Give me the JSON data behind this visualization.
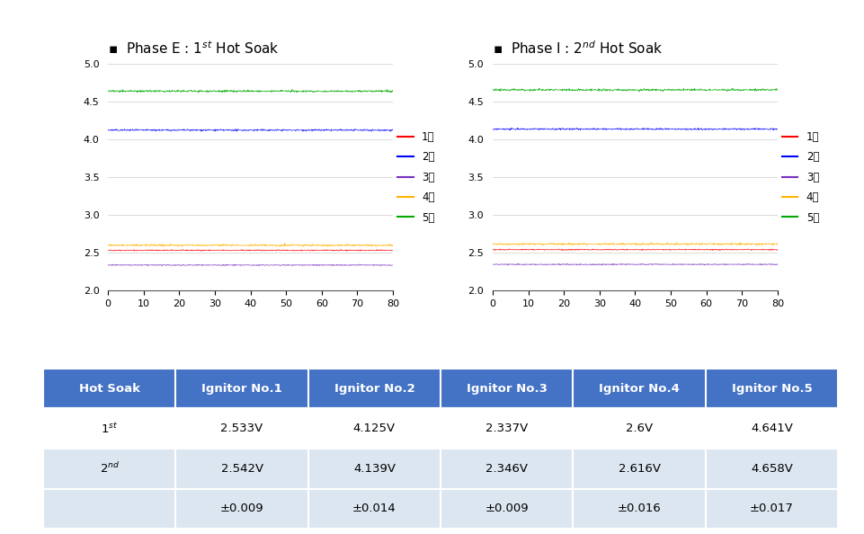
{
  "title_left": "Phase E : 1ˢᵗ Hot Soak",
  "title_right": "Phase I : 2ⁿᵈ Hot Soak",
  "title_left_display": "Phase E : 1$^{st}$ Hot Soak",
  "title_right_display": "Phase I : 2$^{nd}$ Hot Soak",
  "x_range": [
    0,
    80
  ],
  "y_range": [
    2,
    5
  ],
  "y_ticks": [
    2,
    2.5,
    3,
    3.5,
    4,
    4.5,
    5
  ],
  "x_ticks": [
    0,
    10,
    20,
    30,
    40,
    50,
    60,
    70,
    80
  ],
  "n_points": 800,
  "lines": {
    "1번": {
      "color": "#FF0000",
      "phase1_mean": 2.533,
      "phase2_mean": 2.542,
      "noise": 0.009
    },
    "2번": {
      "color": "#0000FF",
      "phase1_mean": 4.125,
      "phase2_mean": 4.139,
      "noise": 0.014
    },
    "3번": {
      "color": "#7B2FBE",
      "phase1_mean": 2.337,
      "phase2_mean": 2.346,
      "noise": 0.009
    },
    "4번": {
      "color": "#FFB300",
      "phase1_mean": 2.6,
      "phase2_mean": 2.616,
      "noise": 0.016
    },
    "5번": {
      "color": "#00AA00",
      "phase1_mean": 4.641,
      "phase2_mean": 4.658,
      "noise": 0.017
    }
  },
  "legend_labels": [
    "1번",
    "2번",
    "3번",
    "4번",
    "5번"
  ],
  "table_header": [
    "Hot Soak",
    "Ignitor No.1",
    "Ignitor No.2",
    "Ignitor No.3",
    "Ignitor No.4",
    "Ignitor No.5"
  ],
  "table_row1_label": "1$^{st}$",
  "table_row2_label": "2$^{nd}$",
  "table_row3_label": "",
  "table_data": [
    [
      "2.533V",
      "4.125V",
      "2.337V",
      "2.6V",
      "4.641V"
    ],
    [
      "2.542V",
      "4.139V",
      "2.346V",
      "2.616V",
      "4.658V"
    ],
    [
      "±0.009",
      "±0.014",
      "±0.009",
      "±0.016",
      "±0.017"
    ]
  ],
  "table_header_bg": "#4472C4",
  "table_row_bg": "#FFFFFF",
  "table_alt_bg": "#DCE6F1",
  "background_color": "#FFFFFF"
}
